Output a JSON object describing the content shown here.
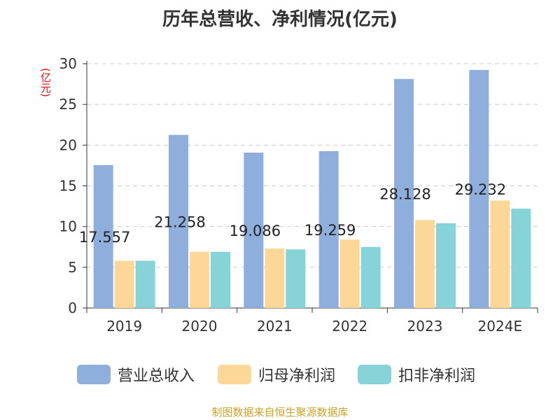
{
  "chart_data": {
    "type": "bar",
    "title": "历年总营收、净利情况(亿元)",
    "ylabel": "(亿元)",
    "source": "制图数据来自恒生聚源数据库",
    "categories": [
      "2019",
      "2020",
      "2021",
      "2022",
      "2023",
      "2024E"
    ],
    "ylim": [
      0,
      30
    ],
    "yticks": [
      0,
      5,
      10,
      15,
      20,
      25,
      30
    ],
    "grid": true,
    "legend_position": "bottom",
    "series": [
      {
        "name": "营业总收入",
        "color": "#8eaedc",
        "values": [
          17.557,
          21.258,
          19.086,
          19.259,
          28.128,
          29.232
        ],
        "labels": [
          "17.557",
          "21.258",
          "19.086",
          "19.259",
          "28.128",
          "29.232"
        ]
      },
      {
        "name": "归母净利润",
        "color": "#fcd797",
        "values": [
          5.8,
          6.9,
          7.3,
          8.4,
          10.8,
          13.2
        ]
      },
      {
        "name": "扣非净利润",
        "color": "#86d4d8",
        "values": [
          5.8,
          6.9,
          7.2,
          7.5,
          10.4,
          12.2
        ]
      }
    ]
  }
}
